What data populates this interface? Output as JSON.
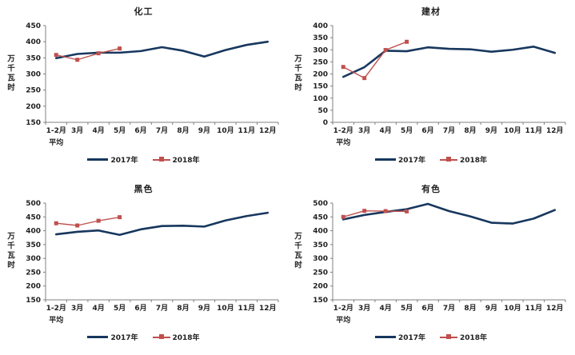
{
  "page": {
    "background": "#ffffff"
  },
  "shared": {
    "legend_2017_label": "2017年",
    "legend_2018_label": "2018年",
    "colors": {
      "series_2017": "#17375E",
      "series_2018": "#C0504D",
      "axis": "#808080",
      "tick_text": "#1f1f1f"
    },
    "ylabel": "万千瓦时",
    "ylabel_chars": [
      "万",
      "千",
      "瓦",
      "时"
    ],
    "first_category_line1": "1-2月",
    "first_category_line2": "平均"
  },
  "chart_data": [
    {
      "type": "line",
      "title": "化工",
      "ylabel": "万千瓦时",
      "xlabel": "",
      "categories": [
        "1-2月",
        "3月",
        "4月",
        "5月",
        "6月",
        "7月",
        "8月",
        "9月",
        "10月",
        "11月",
        "12月"
      ],
      "first_category_line2": "平均",
      "ylim": [
        150,
        450
      ],
      "ytick_step": 50,
      "grid": false,
      "legend_position": "bottom",
      "series": [
        {
          "name": "2017年",
          "color": "#17375E",
          "marker": "none",
          "values": [
            349,
            362,
            366,
            366,
            371,
            383,
            372,
            354,
            374,
            390,
            400
          ]
        },
        {
          "name": "2018年",
          "color": "#C0504D",
          "marker": "square",
          "values": [
            359,
            344,
            364,
            379
          ]
        }
      ]
    },
    {
      "type": "line",
      "title": "建材",
      "ylabel": "万千瓦时",
      "xlabel": "",
      "categories": [
        "1-2月",
        "3月",
        "4月",
        "5月",
        "6月",
        "7月",
        "8月",
        "9月",
        "10月",
        "11月",
        "12月"
      ],
      "first_category_line2": "平均",
      "ylim": [
        0,
        400
      ],
      "ytick_step": 50,
      "grid": false,
      "legend_position": "bottom",
      "series": [
        {
          "name": "2017年",
          "color": "#17375E",
          "marker": "none",
          "values": [
            188,
            228,
            296,
            294,
            310,
            304,
            302,
            292,
            300,
            313,
            287
          ]
        },
        {
          "name": "2018年",
          "color": "#C0504D",
          "marker": "square",
          "values": [
            229,
            183,
            299,
            333
          ]
        }
      ]
    },
    {
      "type": "line",
      "title": "黑色",
      "ylabel": "万千瓦时",
      "xlabel": "",
      "categories": [
        "1-2月",
        "3月",
        "4月",
        "5月",
        "6月",
        "7月",
        "8月",
        "9月",
        "10月",
        "11月",
        "12月"
      ],
      "first_category_line2": "平均",
      "ylim": [
        150,
        500
      ],
      "ytick_step": 50,
      "grid": false,
      "legend_position": "bottom",
      "series": [
        {
          "name": "2017年",
          "color": "#17375E",
          "marker": "none",
          "values": [
            387,
            396,
            401,
            385,
            405,
            417,
            418,
            415,
            437,
            453,
            465
          ]
        },
        {
          "name": "2018年",
          "color": "#C0504D",
          "marker": "square",
          "values": [
            427,
            419,
            436,
            449
          ]
        }
      ]
    },
    {
      "type": "line",
      "title": "有色",
      "ylabel": "万千瓦时",
      "xlabel": "",
      "categories": [
        "1-2月",
        "3月",
        "4月",
        "5月",
        "6月",
        "7月",
        "8月",
        "9月",
        "10月",
        "11月",
        "12月"
      ],
      "first_category_line2": "平均",
      "ylim": [
        150,
        500
      ],
      "ytick_step": 50,
      "grid": false,
      "legend_position": "bottom",
      "series": [
        {
          "name": "2017年",
          "color": "#17375E",
          "marker": "none",
          "values": [
            441,
            457,
            468,
            478,
            497,
            471,
            452,
            429,
            426,
            444,
            475
          ]
        },
        {
          "name": "2018年",
          "color": "#C0504D",
          "marker": "square",
          "values": [
            450,
            472,
            471,
            470
          ]
        }
      ]
    }
  ]
}
